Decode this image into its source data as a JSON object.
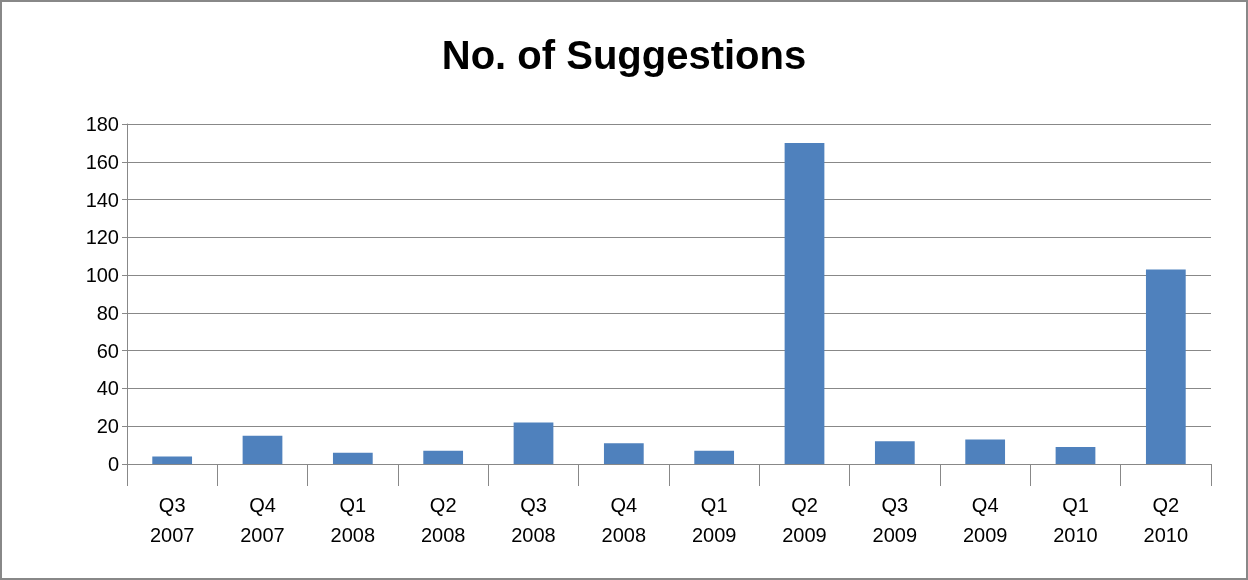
{
  "chart_data": {
    "type": "bar",
    "title": "No. of Suggestions",
    "categories": [
      "Q3\n2007",
      "Q4\n2007",
      "Q1\n2008",
      "Q2\n2008",
      "Q3\n2008",
      "Q4\n2008",
      "Q1\n2009",
      "Q2\n2009",
      "Q3\n2009",
      "Q4\n2009",
      "Q1\n2010",
      "Q2\n2010"
    ],
    "values": [
      4,
      15,
      6,
      7,
      22,
      11,
      7,
      170,
      12,
      13,
      9,
      103
    ],
    "color": "#4f81bd",
    "ylim": [
      0,
      180
    ],
    "yticks": [
      0,
      20,
      40,
      60,
      80,
      100,
      120,
      140,
      160,
      180
    ],
    "grid": "y"
  }
}
